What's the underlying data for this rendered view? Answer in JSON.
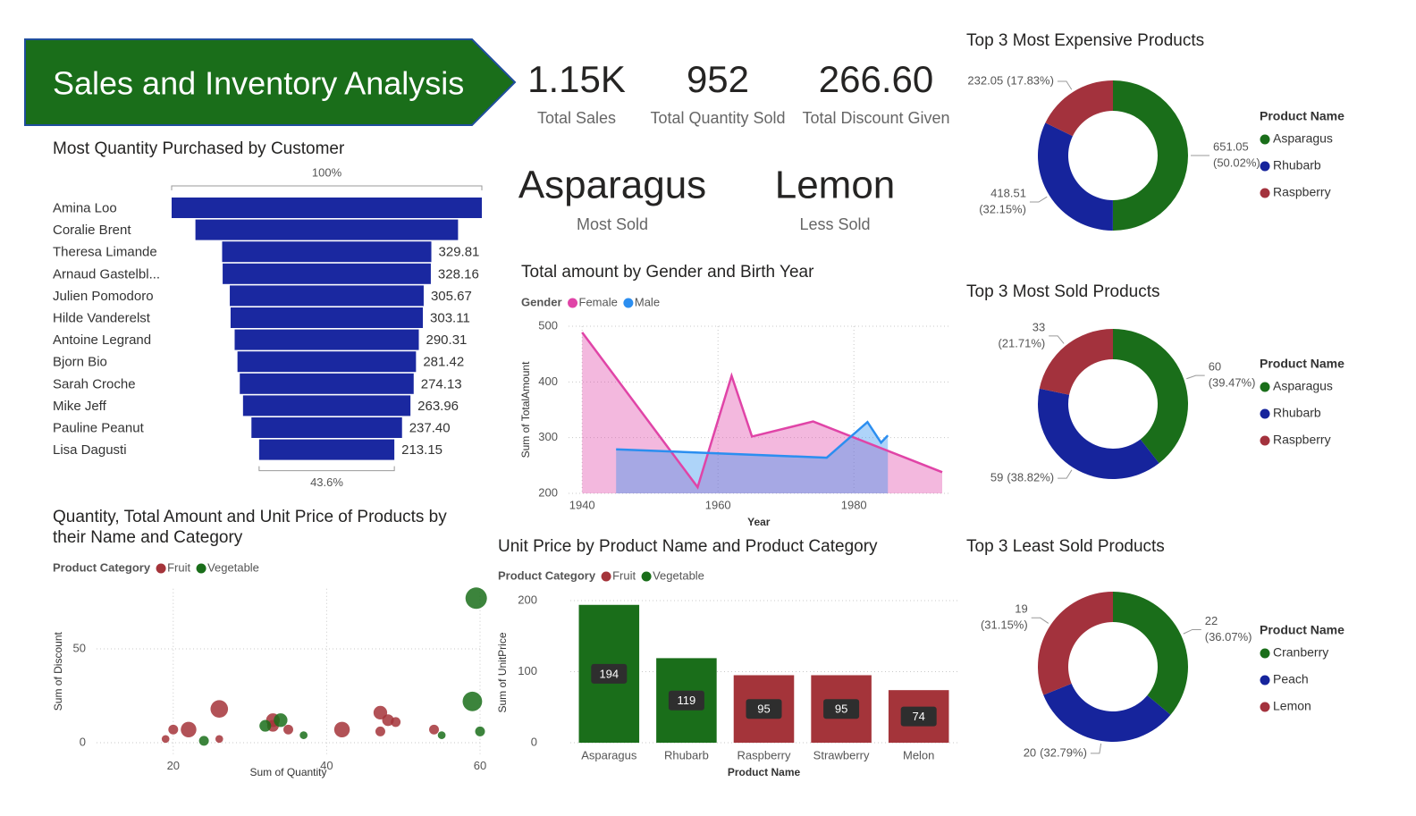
{
  "header": {
    "title": "Sales and Inventory Analysis"
  },
  "cards": [
    {
      "value": {
        "value": 1150,
        "label": "1.15K"
      },
      "label": "Total Sales"
    },
    {
      "value": 952,
      "label": "Total Quantity Sold"
    },
    {
      "value": {
        "value": 266.6,
        "label": "266.60"
      },
      "label": "Total Discount Given"
    }
  ],
  "text_cards": [
    {
      "value": "Asparagus",
      "label": "Most Sold"
    },
    {
      "value": "Lemon",
      "label": "Less Sold"
    }
  ],
  "chart_data": [
    {
      "type": "funnel",
      "title": "Most Quantity Purchased by Customer",
      "categories": [
        "Amina Loo",
        "Coralie Brent",
        "Theresa Limande",
        "Arnaud Gastelbl...",
        "Julien Pomodoro",
        "Hilde Vanderelst",
        "Antoine Legrand",
        "Bjorn Bio",
        "Sarah Croche",
        "Mike Jeff",
        "Pauline Peanut",
        "Lisa Dagusti"
      ],
      "values": [
        489,
        414,
        329.81,
        328.16,
        305.67,
        303.11,
        290.31,
        281.42,
        274.13,
        263.96,
        237.4,
        213.15
      ],
      "value_labels": [
        null,
        null,
        "329.81",
        "328.16",
        "305.67",
        "303.11",
        "290.31",
        "281.42",
        "274.13",
        "263.96",
        "237.40",
        "213.15"
      ],
      "color": "#1a28a0",
      "percent_labels": [
        {
          "value": 100,
          "label": "100%"
        },
        {
          "value": 43.6,
          "label": "43.6%"
        }
      ]
    },
    {
      "type": "scatter",
      "title": "Quantity, Total Amount and Unit Price of Products by their Name and Category",
      "legend_title": "Product Category",
      "x_label": "Sum of Quantity",
      "y_label": "Sum of Discount",
      "xlim": [
        10,
        60
      ],
      "ylim": [
        -6,
        82
      ],
      "xticks": [
        20,
        40,
        60
      ],
      "yticks": [
        0,
        50
      ],
      "grid": true,
      "series": [
        {
          "name": "Fruit",
          "color": "#a4343a",
          "x": [
            19,
            20,
            22,
            26,
            26,
            33,
            33,
            35,
            42,
            47,
            47,
            48,
            49,
            54
          ],
          "values": [
            2,
            7,
            7,
            18,
            2,
            12,
            9,
            7,
            7,
            16,
            6,
            12,
            11,
            7
          ],
          "sizes": [
            22,
            35,
            89,
            112,
            22,
            68,
            50,
            35,
            89,
            68,
            35,
            50,
            35,
            35
          ]
        },
        {
          "name": "Vegetable",
          "color": "#1a6e1a",
          "x": [
            24,
            32,
            34,
            37,
            55,
            59,
            59.5,
            60
          ],
          "values": [
            1,
            9,
            12,
            4,
            4,
            22,
            77,
            6
          ],
          "sizes": [
            35,
            50,
            68,
            22,
            22,
            139,
            168,
            35
          ]
        }
      ]
    },
    {
      "type": "area",
      "title": "Total amount by Gender and Birth Year",
      "legend_title": "Gender",
      "x_label": "Year",
      "y_label": "Sum of TotalAmount",
      "xlim": [
        1938,
        1994
      ],
      "ylim": [
        200,
        500
      ],
      "xticks": [
        1940,
        1960,
        1980
      ],
      "yticks": [
        200,
        300,
        400,
        500
      ],
      "grid": true,
      "series": [
        {
          "name": "Female",
          "color": "#e044a7",
          "x": [
            1940,
            1957,
            1962,
            1965,
            1974,
            1993
          ],
          "values": [
            489,
            211,
            411,
            302,
            329,
            238
          ]
        },
        {
          "name": "Male",
          "color": "#2b8ef0",
          "x": [
            1945,
            1976,
            1982,
            1984,
            1985
          ],
          "values": [
            279,
            264,
            328,
            291,
            304
          ]
        }
      ]
    },
    {
      "type": "bar",
      "title": "Unit Price by Product Name and Product Category",
      "legend_title": "Product Category",
      "x_label": "Product Name",
      "y_label": "Sum of UnitPrice",
      "categories": [
        "Asparagus",
        "Rhubarb",
        "Raspberry",
        "Strawberry",
        "Melon"
      ],
      "ylim": [
        0,
        200
      ],
      "yticks": [
        0,
        100,
        200
      ],
      "grid": true,
      "series": [
        {
          "name": "Fruit",
          "color": "#a4343a",
          "values": [
            null,
            null,
            95,
            95,
            74
          ]
        },
        {
          "name": "Vegetable",
          "color": "#1a6e1a",
          "values": [
            194,
            119,
            null,
            null,
            null
          ]
        }
      ]
    },
    {
      "type": "pie",
      "title": "Top 3 Most Expensive Products",
      "legend_title": "Product Name",
      "categories": [
        "Asparagus",
        "Rhubarb",
        "Raspberry"
      ],
      "values": [
        651.05,
        418.51,
        232.05
      ],
      "colors": [
        "#1a6e1a",
        "#16249c",
        "#a3323d"
      ],
      "percent_labels": [
        {
          "value": 50.02,
          "label": "(50.02%)"
        },
        {
          "value": 32.15,
          "label": "(32.15%)"
        },
        {
          "value": 17.83,
          "label": "(17.83%)"
        }
      ]
    },
    {
      "type": "pie",
      "title": "Top 3 Most Sold Products",
      "legend_title": "Product Name",
      "categories": [
        "Asparagus",
        "Rhubarb",
        "Raspberry"
      ],
      "values": [
        60,
        59,
        33
      ],
      "colors": [
        "#1a6e1a",
        "#16249c",
        "#a3323d"
      ],
      "percent_labels": [
        {
          "value": 39.47,
          "label": "(39.47%)"
        },
        {
          "value": 38.82,
          "label": "(38.82%)"
        },
        {
          "value": 21.71,
          "label": "(21.71%)"
        }
      ]
    },
    {
      "type": "pie",
      "title": "Top 3 Least Sold Products",
      "legend_title": "Product Name",
      "categories": [
        "Cranberry",
        "Peach",
        "Lemon"
      ],
      "values": [
        22,
        20,
        19
      ],
      "colors": [
        "#1a6e1a",
        "#16249c",
        "#a3323d"
      ],
      "percent_labels": [
        {
          "value": 36.07,
          "label": "(36.07%)"
        },
        {
          "value": 32.79,
          "label": "(32.79%)"
        },
        {
          "value": 31.15,
          "label": "(31.15%)"
        }
      ]
    }
  ]
}
